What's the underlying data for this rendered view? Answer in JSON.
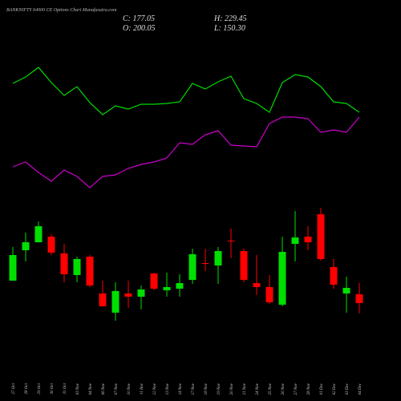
{
  "chart_data": {
    "type": "candlestick",
    "title": "BANKNIFTY 64000 CE Options Chart Munafasutra.com",
    "info_labels": [
      "C: 177.05",
      "H: 229.45",
      "O: 200.05",
      "L: 150.30"
    ],
    "categories": [
      "27 Oct",
      "28 Oct",
      "29 Oct",
      "30 Oct",
      "31 Oct",
      "03 Nov",
      "04 Nov",
      "06 Nov",
      "07 Nov",
      "10 Nov",
      "11 Nov",
      "12 Nov",
      "13 Nov",
      "14 Nov",
      "17 Nov",
      "18 Nov",
      "19 Nov",
      "20 Nov",
      "21 Nov",
      "24 Nov",
      "25 Nov",
      "26 Nov",
      "27 Nov",
      "28 Nov",
      "01 Dec",
      "02 Dec",
      "03 Dec",
      "04 Dec"
    ],
    "open": [
      235.4,
      314.5,
      335.3,
      349.9,
      306.2,
      249.9,
      297.8,
      202.0,
      152.1,
      202.0,
      193.7,
      254.1,
      210.4,
      214.5,
      237.4,
      281.2,
      274.9,
      339.5,
      312.4,
      229.1,
      218.7,
      172.8,
      331.2,
      349.9,
      408.2,
      270.8,
      202.0,
      200.05
    ],
    "high": [
      322.8,
      360.3,
      389.5,
      356.2,
      331.2,
      297.8,
      302.0,
      235.4,
      231.2,
      235.4,
      222.8,
      256.2,
      256.2,
      252.0,
      318.7,
      318.7,
      322.8,
      370.8,
      318.7,
      302.0,
      249.9,
      349.9,
      416.6,
      377.0,
      424.9,
      291.6,
      245.8,
      229.45
    ],
    "low": [
      235.4,
      285.3,
      335.3,
      302.0,
      231.2,
      231.2,
      218.7,
      168.7,
      131.2,
      164.5,
      160.4,
      210.4,
      193.7,
      193.7,
      227.0,
      260.3,
      227.0,
      293.7,
      231.2,
      197.9,
      175.0,
      168.7,
      285.3,
      314.5,
      287.4,
      214.5,
      152.1,
      150.3
    ],
    "close": [
      302.0,
      335.3,
      377.0,
      308.3,
      252.0,
      291.6,
      222.8,
      168.7,
      208.3,
      193.7,
      212.4,
      214.5,
      218.7,
      229.1,
      304.1,
      279.1,
      312.4,
      337.4,
      237.4,
      218.7,
      179.1,
      310.3,
      347.8,
      335.3,
      291.6,
      224.9,
      216.6,
      177.05
    ],
    "up_color": "#00e000",
    "down_color": "#ff0000",
    "ylim": [
      110,
      444
    ],
    "lines": {
      "ylim": [
        0,
        300
      ],
      "series": [
        {
          "color": "#00dd00",
          "values": [
            196,
            204,
            216,
            197,
            181,
            192,
            172,
            157,
            168,
            164,
            170,
            170,
            171,
            173,
            196,
            189,
            198,
            205,
            177,
            171,
            160,
            197,
            207,
            204,
            192,
            173,
            171,
            160
          ]
        },
        {
          "color": "#cc00cc",
          "values": [
            92,
            98,
            85,
            74,
            88,
            80,
            66,
            80,
            82,
            90,
            95,
            98,
            103,
            122,
            120,
            132,
            137,
            119,
            118,
            117,
            146,
            154,
            154,
            152,
            135,
            138,
            135,
            154
          ]
        }
      ]
    }
  }
}
